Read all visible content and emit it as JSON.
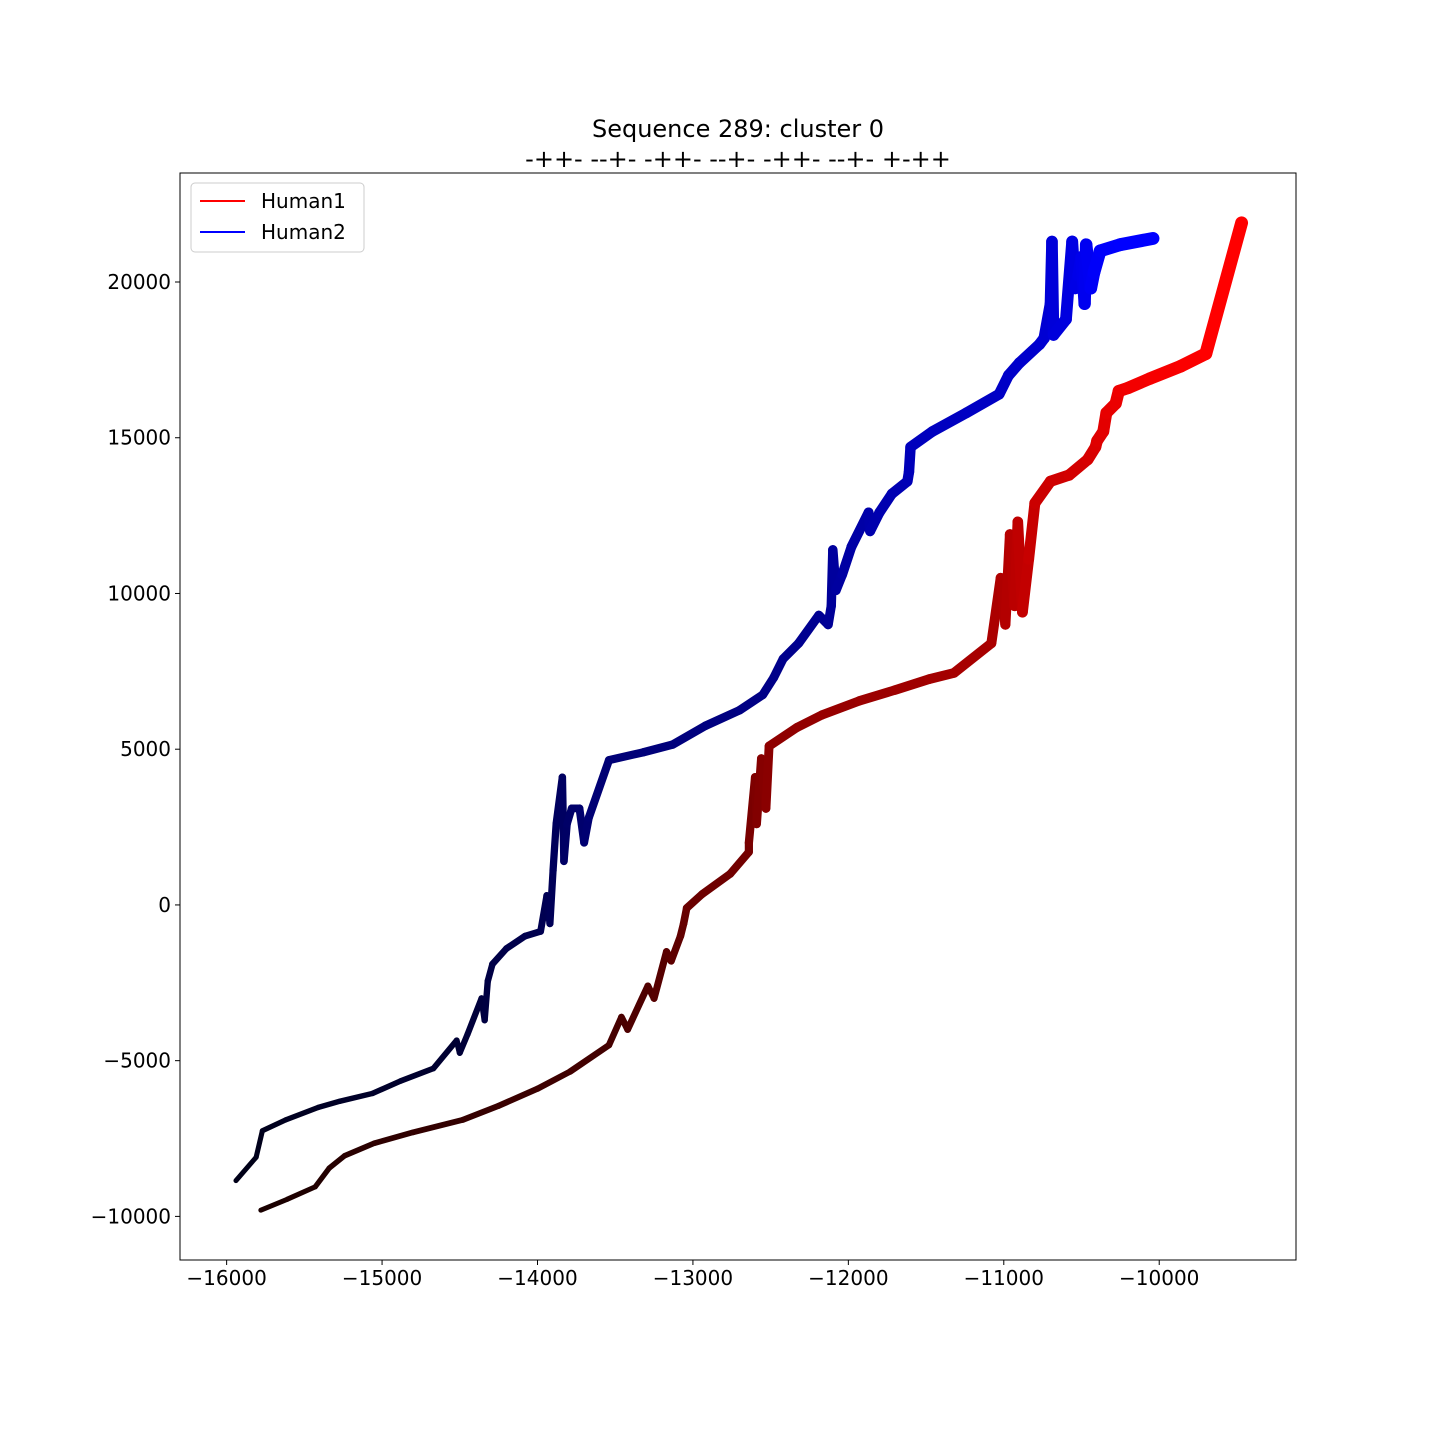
{
  "chart_data": {
    "type": "line",
    "title": "Sequence 289: cluster 0",
    "subtitle": "-++- --+- -++- --+- -++- --+- +-++",
    "xlabel": "",
    "ylabel": "",
    "xlim": [
      -16300,
      -9120
    ],
    "ylim": [
      -11400,
      23500
    ],
    "x_ticks": [
      -16000,
      -15000,
      -14000,
      -13000,
      -12000,
      -11000,
      -10000
    ],
    "y_ticks": [
      -10000,
      -5000,
      0,
      5000,
      10000,
      15000,
      20000
    ],
    "x_tick_labels": [
      "−16000",
      "−15000",
      "−14000",
      "−13000",
      "−12000",
      "−11000",
      "−10000"
    ],
    "y_tick_labels": [
      "−10000",
      "−5000",
      "0",
      "5000",
      "10000",
      "15000",
      "20000"
    ],
    "grid": false,
    "legend": {
      "position": "top-left"
    },
    "series": [
      {
        "name": "Human1",
        "legend_color": "#ff0000",
        "color_start": "#1a0000",
        "color_end": "#ff0000",
        "x": [
          -15780,
          -15610,
          -15430,
          -15340,
          -15240,
          -15050,
          -14800,
          -14480,
          -14250,
          -14000,
          -13790,
          -13540,
          -13460,
          -13420,
          -13290,
          -13250,
          -13170,
          -13140,
          -13080,
          -13060,
          -13040,
          -12940,
          -12760,
          -12640,
          -12640,
          -12600,
          -12590,
          -12560,
          -12530,
          -12510,
          -12330,
          -12170,
          -11930,
          -11700,
          -11480,
          -11320,
          -11080,
          -11020,
          -10990,
          -10960,
          -10930,
          -10910,
          -10880,
          -10840,
          -10800,
          -10700,
          -10580,
          -10460,
          -10410,
          -10400,
          -10360,
          -10340,
          -10280,
          -10260,
          -10200,
          -10060,
          -9860,
          -9700,
          -9470
        ],
        "y": [
          -9800,
          -9450,
          -9050,
          -8450,
          -8050,
          -7650,
          -7300,
          -6900,
          -6450,
          -5900,
          -5350,
          -4500,
          -3600,
          -4000,
          -2600,
          -3000,
          -1500,
          -1800,
          -1000,
          -600,
          -100,
          350,
          1000,
          1700,
          2000,
          4100,
          2600,
          4700,
          3100,
          5100,
          5700,
          6100,
          6550,
          6900,
          7250,
          7450,
          8400,
          10500,
          9000,
          11900,
          9600,
          12300,
          9400,
          11100,
          12900,
          13600,
          13800,
          14300,
          14700,
          14900,
          15200,
          15800,
          16100,
          16500,
          16600,
          16900,
          17300,
          17700,
          21900
        ]
      },
      {
        "name": "Human2",
        "legend_color": "#0000ff",
        "color_start": "#000018",
        "color_end": "#0000ff",
        "x": [
          -15940,
          -15810,
          -15770,
          -15620,
          -15410,
          -15270,
          -15060,
          -14880,
          -14670,
          -14520,
          -14500,
          -14450,
          -14360,
          -14340,
          -14320,
          -14290,
          -14200,
          -14080,
          -13980,
          -13940,
          -13920,
          -13900,
          -13880,
          -13840,
          -13830,
          -13810,
          -13780,
          -13730,
          -13700,
          -13670,
          -13540,
          -13320,
          -13130,
          -12920,
          -12700,
          -12550,
          -12480,
          -12420,
          -12320,
          -12190,
          -12130,
          -12110,
          -12100,
          -12080,
          -12040,
          -11980,
          -11870,
          -11860,
          -11800,
          -11720,
          -11620,
          -11610,
          -11600,
          -11460,
          -11240,
          -11030,
          -10970,
          -10900,
          -10770,
          -10740,
          -10700,
          -10690,
          -10680,
          -10600,
          -10560,
          -10540,
          -10520,
          -10500,
          -10480,
          -10470,
          -10440,
          -10420,
          -10380,
          -10250,
          -10040
        ],
        "y": [
          -8850,
          -8100,
          -7250,
          -6900,
          -6500,
          -6300,
          -6050,
          -5650,
          -5250,
          -4350,
          -4750,
          -4150,
          -3000,
          -3700,
          -2450,
          -1900,
          -1400,
          -1000,
          -850,
          300,
          -600,
          1100,
          2600,
          4100,
          1400,
          2600,
          3100,
          3100,
          2000,
          2800,
          4650,
          4900,
          5150,
          5750,
          6250,
          6750,
          7300,
          7900,
          8400,
          9300,
          9000,
          9600,
          11400,
          10100,
          10600,
          11500,
          12600,
          12000,
          12600,
          13200,
          13600,
          13900,
          14700,
          15200,
          15800,
          16400,
          17000,
          17400,
          18000,
          18200,
          19300,
          21300,
          18300,
          18800,
          21300,
          19800,
          20200,
          20800,
          19300,
          21200,
          19800,
          20300,
          21000,
          21200,
          21400
        ]
      }
    ]
  }
}
